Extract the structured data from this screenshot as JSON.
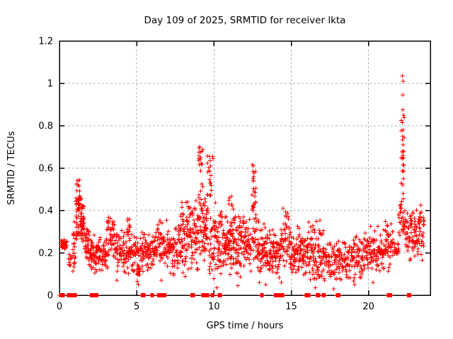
{
  "chart_data": {
    "type": "scatter",
    "title": "Day 109 of 2025, SRMTID for receiver lkta",
    "xlabel": "GPS time / hours",
    "ylabel": "SRMTID / TECUs",
    "xlim": [
      0,
      24
    ],
    "ylim": [
      0,
      1.2
    ],
    "xticks": {
      "values": [
        0,
        5,
        10,
        15,
        20
      ],
      "labels": [
        "0",
        "5",
        "10",
        "15",
        "20"
      ]
    },
    "yticks": {
      "values": [
        0,
        0.2,
        0.4,
        0.6,
        0.8,
        1.0,
        1.2
      ],
      "labels": [
        "0",
        "0.2",
        "0.4",
        "0.6",
        "0.8",
        "1",
        "1.2"
      ]
    },
    "grid": {
      "visible": true,
      "color": "#b0b0b0",
      "style": "dashed"
    },
    "legend": null,
    "marker": {
      "glyph": "plus",
      "color": "#ff0000",
      "size": 7
    },
    "axis_color": "#000000",
    "background": "#ffffff",
    "peaks": [
      {
        "x": 1.2,
        "y": 0.54
      },
      {
        "x": 9.1,
        "y": 0.7
      },
      {
        "x": 9.7,
        "y": 0.66
      },
      {
        "x": 12.55,
        "y": 0.61
      },
      {
        "x": 22.2,
        "y": 1.04
      }
    ],
    "points": [
      [
        1.18,
        0.54
      ],
      [
        1.21,
        0.52
      ],
      [
        9.08,
        0.7
      ],
      [
        9.11,
        0.675
      ],
      [
        9.13,
        0.65
      ],
      [
        9.16,
        0.62
      ],
      [
        9.72,
        0.655
      ],
      [
        9.75,
        0.635
      ],
      [
        9.77,
        0.61
      ],
      [
        9.7,
        0.585
      ],
      [
        9.8,
        0.565
      ],
      [
        12.55,
        0.61
      ],
      [
        12.52,
        0.585
      ],
      [
        12.58,
        0.56
      ],
      [
        12.55,
        0.54
      ],
      [
        22.2,
        1.035
      ],
      [
        22.23,
        1.01
      ],
      [
        22.21,
        0.945
      ],
      [
        22.22,
        0.875
      ],
      [
        22.25,
        0.85
      ],
      [
        22.2,
        0.815
      ],
      [
        22.24,
        0.78
      ],
      [
        22.21,
        0.75
      ],
      [
        22.23,
        0.71
      ],
      [
        22.26,
        0.68
      ],
      [
        22.2,
        0.645
      ],
      [
        22.24,
        0.615
      ],
      [
        22.22,
        0.585
      ],
      [
        22.25,
        0.55
      ],
      [
        22.21,
        0.52
      ],
      [
        22.24,
        0.48
      ],
      [
        22.27,
        0.455
      ],
      [
        3.7,
        0.07
      ],
      [
        5.1,
        0.05
      ],
      [
        6.6,
        0.07
      ],
      [
        10.2,
        0.035
      ],
      [
        11.55,
        0.045
      ],
      [
        12.95,
        0.06
      ],
      [
        13.35,
        0.05
      ],
      [
        14.35,
        0.06
      ],
      [
        16.55,
        0.035
      ],
      [
        17.75,
        0.03
      ],
      [
        19.1,
        0.05
      ],
      [
        20.3,
        0.06
      ]
    ],
    "bands": [
      {
        "x": [
          0.1,
          0.5
        ],
        "y": [
          0.21,
          0.27
        ],
        "n": 30,
        "dist": "mid"
      },
      {
        "x": [
          0.55,
          0.8
        ],
        "y": [
          0.1,
          0.22
        ],
        "n": 10,
        "dist": "mid"
      },
      {
        "x": [
          0.85,
          1.05
        ],
        "y": [
          0.1,
          0.38
        ],
        "n": 20,
        "dist": "mid"
      },
      {
        "x": [
          1.05,
          1.35
        ],
        "y": [
          0.26,
          0.545
        ],
        "n": 48,
        "dist": "uniform"
      },
      {
        "x": [
          1.35,
          1.6
        ],
        "y": [
          0.22,
          0.46
        ],
        "n": 40,
        "dist": "mid"
      },
      {
        "x": [
          1.6,
          1.95
        ],
        "y": [
          0.12,
          0.34
        ],
        "n": 36,
        "dist": "mid"
      },
      {
        "x": [
          1.95,
          3.0
        ],
        "y": [
          0.1,
          0.29
        ],
        "n": 95,
        "dist": "mid"
      },
      {
        "x": [
          3.0,
          3.6
        ],
        "y": [
          0.12,
          0.4
        ],
        "n": 52,
        "dist": "mid"
      },
      {
        "x": [
          3.6,
          5.3
        ],
        "y": [
          0.09,
          0.31
        ],
        "n": 135,
        "dist": "mid"
      },
      {
        "x": [
          4.4,
          4.6
        ],
        "y": [
          0.28,
          0.37
        ],
        "n": 10,
        "dist": "mid"
      },
      {
        "x": [
          5.0,
          5.2
        ],
        "y": [
          0.05,
          0.12
        ],
        "n": 8,
        "dist": "mid"
      },
      {
        "x": [
          5.3,
          6.2
        ],
        "y": [
          0.1,
          0.31
        ],
        "n": 70,
        "dist": "mid"
      },
      {
        "x": [
          6.2,
          6.9
        ],
        "y": [
          0.1,
          0.36
        ],
        "n": 55,
        "dist": "mid"
      },
      {
        "x": [
          6.9,
          8.15
        ],
        "y": [
          0.08,
          0.38
        ],
        "n": 100,
        "dist": "mid"
      },
      {
        "x": [
          7.85,
          8.05
        ],
        "y": [
          0.3,
          0.44
        ],
        "n": 10,
        "dist": "uniform"
      },
      {
        "x": [
          8.15,
          9.0
        ],
        "y": [
          0.1,
          0.48
        ],
        "n": 85,
        "dist": "mid"
      },
      {
        "x": [
          9.0,
          9.3
        ],
        "y": [
          0.18,
          0.7
        ],
        "n": 42,
        "dist": "uniform"
      },
      {
        "x": [
          9.3,
          9.55
        ],
        "y": [
          0.12,
          0.5
        ],
        "n": 38,
        "dist": "mid"
      },
      {
        "x": [
          9.55,
          9.95
        ],
        "y": [
          0.1,
          0.66
        ],
        "n": 45,
        "dist": "uniform"
      },
      {
        "x": [
          9.95,
          10.5
        ],
        "y": [
          0.04,
          0.45
        ],
        "n": 55,
        "dist": "mid"
      },
      {
        "x": [
          10.5,
          11.3
        ],
        "y": [
          0.08,
          0.4
        ],
        "n": 85,
        "dist": "mid"
      },
      {
        "x": [
          10.95,
          11.25
        ],
        "y": [
          0.3,
          0.47
        ],
        "n": 12,
        "dist": "uniform"
      },
      {
        "x": [
          11.3,
          12.4
        ],
        "y": [
          0.08,
          0.42
        ],
        "n": 95,
        "dist": "mid"
      },
      {
        "x": [
          12.45,
          12.75
        ],
        "y": [
          0.15,
          0.62
        ],
        "n": 38,
        "dist": "uniform"
      },
      {
        "x": [
          12.75,
          13.5
        ],
        "y": [
          0.07,
          0.36
        ],
        "n": 70,
        "dist": "mid"
      },
      {
        "x": [
          13.5,
          14.3
        ],
        "y": [
          0.07,
          0.32
        ],
        "n": 70,
        "dist": "mid"
      },
      {
        "x": [
          14.3,
          14.9
        ],
        "y": [
          0.1,
          0.44
        ],
        "n": 50,
        "dist": "mid"
      },
      {
        "x": [
          14.9,
          16.1
        ],
        "y": [
          0.08,
          0.33
        ],
        "n": 110,
        "dist": "mid"
      },
      {
        "x": [
          16.1,
          17.1
        ],
        "y": [
          0.05,
          0.36
        ],
        "n": 90,
        "dist": "mid"
      },
      {
        "x": [
          17.1,
          18.4
        ],
        "y": [
          0.04,
          0.28
        ],
        "n": 95,
        "dist": "mid"
      },
      {
        "x": [
          18.4,
          19.6
        ],
        "y": [
          0.06,
          0.29
        ],
        "n": 85,
        "dist": "mid"
      },
      {
        "x": [
          19.6,
          20.9
        ],
        "y": [
          0.08,
          0.33
        ],
        "n": 95,
        "dist": "mid"
      },
      {
        "x": [
          20.9,
          21.6
        ],
        "y": [
          0.1,
          0.38
        ],
        "n": 55,
        "dist": "mid"
      },
      {
        "x": [
          21.65,
          21.95
        ],
        "y": [
          0.17,
          0.25
        ],
        "n": 20,
        "dist": "mid"
      },
      {
        "x": [
          21.95,
          22.4
        ],
        "y": [
          0.22,
          0.47
        ],
        "n": 30,
        "dist": "mid"
      },
      {
        "x": [
          22.1,
          22.35
        ],
        "y": [
          0.5,
          0.85
        ],
        "n": 16,
        "dist": "uniform"
      },
      {
        "x": [
          22.4,
          22.8
        ],
        "y": [
          0.15,
          0.42
        ],
        "n": 30,
        "dist": "mid"
      },
      {
        "x": [
          22.8,
          23.6
        ],
        "y": [
          0.13,
          0.46
        ],
        "n": 70,
        "dist": "mid"
      }
    ],
    "zero_segments": [
      [
        0.0,
        0.3
      ],
      [
        0.5,
        1.1
      ],
      [
        2.0,
        2.5
      ],
      [
        5.3,
        5.55
      ],
      [
        5.9,
        6.1
      ],
      [
        6.35,
        6.9
      ],
      [
        8.5,
        8.75
      ],
      [
        9.2,
        9.65
      ],
      [
        9.8,
        10.0
      ],
      [
        10.25,
        10.5
      ],
      [
        13.0,
        13.2
      ],
      [
        13.9,
        14.5
      ],
      [
        15.9,
        16.2
      ],
      [
        16.6,
        16.85
      ],
      [
        17.0,
        17.2
      ],
      [
        17.9,
        18.15
      ],
      [
        21.2,
        21.5
      ],
      [
        22.5,
        22.75
      ]
    ],
    "generation": {
      "seed": 109,
      "column_step": 0.11,
      "x_jitter": 0.09,
      "zero_step": 0.03
    }
  }
}
